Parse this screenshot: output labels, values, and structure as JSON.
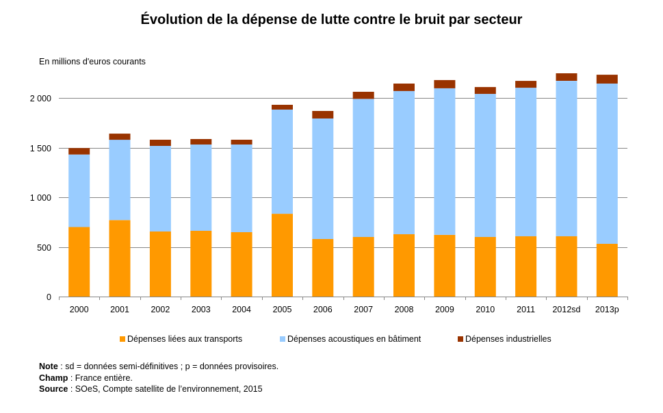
{
  "chart_data": {
    "type": "bar",
    "stacked": true,
    "title": "Évolution de la dépense de lutte contre le bruit par secteur",
    "ylabel": "En millions d'euros courants",
    "xlabel": "",
    "ylim": [
      0,
      2250
    ],
    "yticks": [
      0,
      500,
      1000,
      1500,
      2000
    ],
    "ytick_labels": [
      "0",
      "500",
      "1 000",
      "1 500",
      "2 000"
    ],
    "grid": true,
    "legend_position": "bottom",
    "categories": [
      "2000",
      "2001",
      "2002",
      "2003",
      "2004",
      "2005",
      "2006",
      "2007",
      "2008",
      "2009",
      "2010",
      "2011",
      "2012sd",
      "2013p"
    ],
    "series": [
      {
        "name": "Dépenses liées aux transports",
        "color": "#FF9900",
        "values": [
          700,
          770,
          655,
          662,
          648,
          834,
          579,
          600,
          628,
          621,
          600,
          607,
          607,
          531
        ]
      },
      {
        "name": "Dépenses acoustiques en bâtiment",
        "color": "#99CCFF",
        "values": [
          730,
          809,
          862,
          869,
          883,
          1049,
          1214,
          1390,
          1442,
          1476,
          1441,
          1496,
          1565,
          1614
        ]
      },
      {
        "name": "Dépenses industrielles",
        "color": "#993300",
        "values": [
          65,
          62,
          62,
          55,
          48,
          48,
          76,
          72,
          75,
          83,
          69,
          69,
          76,
          89
        ]
      }
    ]
  },
  "notes": {
    "note_label": "Note",
    "note_text": " : sd = données semi-définitives ; p = données provisoires.",
    "champ_label": "Champ",
    "champ_text": " : France entière.",
    "source_label": "Source",
    "source_text": " : SOeS, Compte satellite de l’environnement, 2015"
  }
}
